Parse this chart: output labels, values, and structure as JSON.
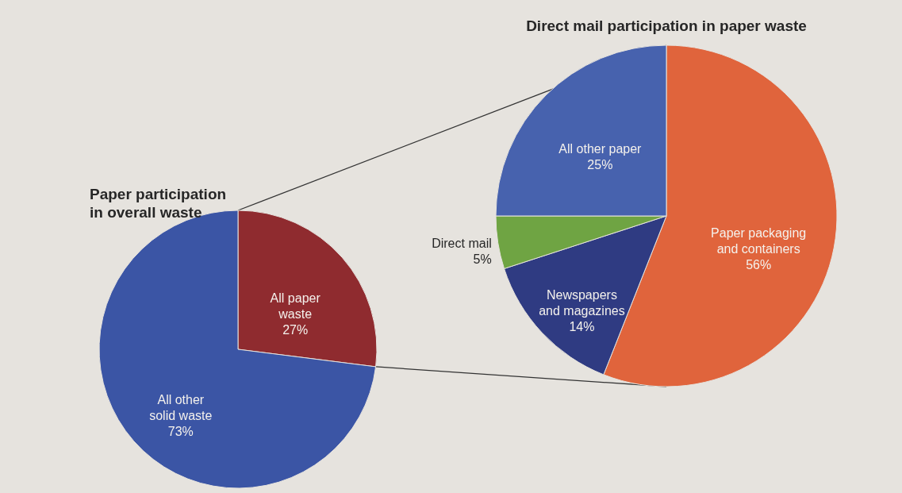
{
  "chart_data": [
    {
      "type": "pie",
      "title": "Paper participation in overall waste",
      "categories": [
        "All paper waste",
        "All other solid waste"
      ],
      "values": [
        27,
        73
      ],
      "value_labels": [
        "27%",
        "73%"
      ],
      "colors": [
        "#8f2b2f",
        "#3b55a5"
      ]
    },
    {
      "type": "pie",
      "title": "Direct mail participation in paper waste",
      "categories": [
        "Paper packaging and containers",
        "Newspapers and magazines",
        "Direct mail",
        "All other paper"
      ],
      "values": [
        56,
        14,
        5,
        25
      ],
      "value_labels": [
        "56%",
        "14%",
        "5%",
        "25%"
      ],
      "colors": [
        "#e0643c",
        "#2f3b82",
        "#6fa443",
        "#4762ae"
      ]
    }
  ]
}
